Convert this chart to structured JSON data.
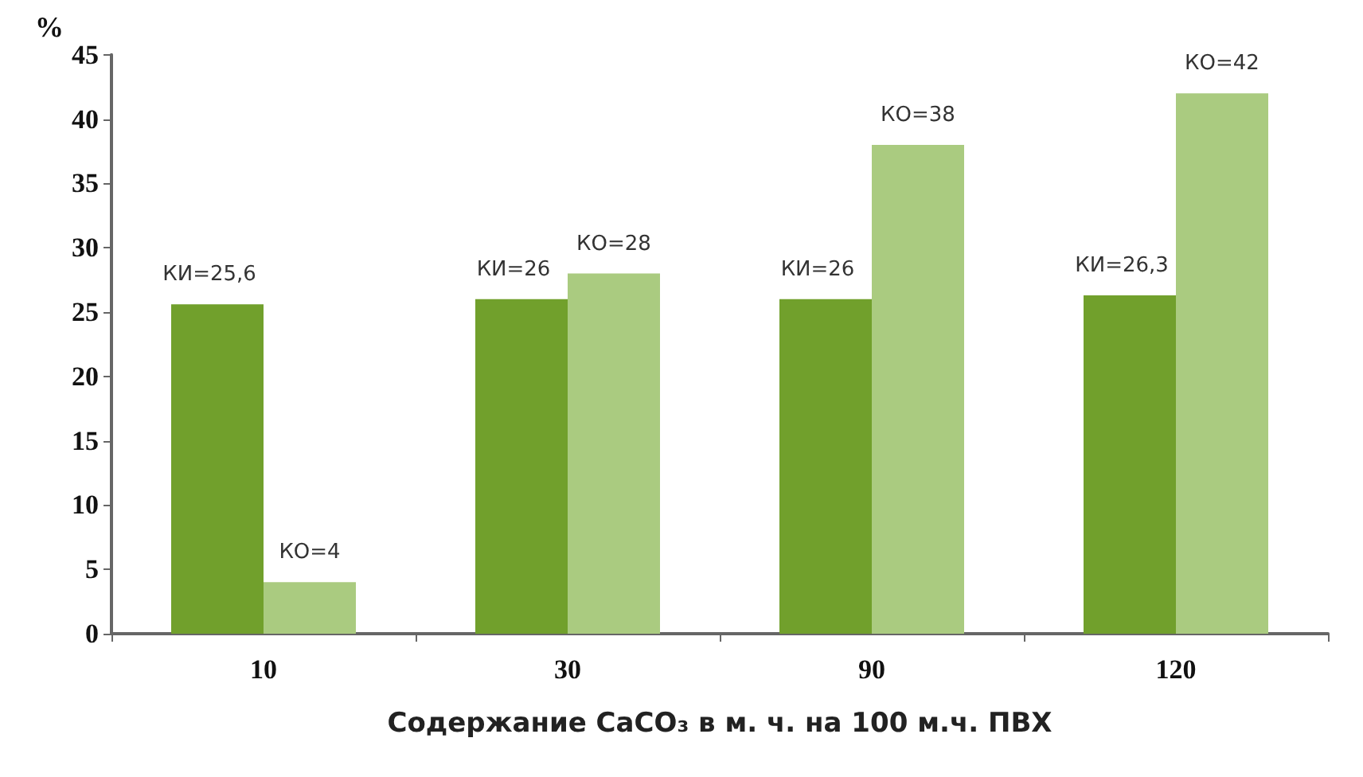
{
  "chart_data": {
    "type": "bar",
    "ylabel": "%",
    "xlabel": "Содержание CaCO₃ в м. ч. на 100 м.ч. ПВХ",
    "categories": [
      "10",
      "30",
      "90",
      "120"
    ],
    "series": [
      {
        "color": "#71a02c",
        "values": [
          25.6,
          26,
          26,
          26.3
        ],
        "value_labels": [
          "КИ=25,6",
          "КИ=26",
          "КИ=26",
          "КИ=26,3"
        ]
      },
      {
        "color": "#aacb80",
        "values": [
          4,
          28,
          38,
          42
        ],
        "value_labels": [
          "КО=4",
          "КО=28",
          "КО=38",
          "КО=42"
        ]
      }
    ],
    "ylim": [
      0,
      45
    ],
    "yticks": [
      0,
      5,
      10,
      15,
      20,
      25,
      30,
      35,
      40,
      45
    ],
    "grid": false
  }
}
